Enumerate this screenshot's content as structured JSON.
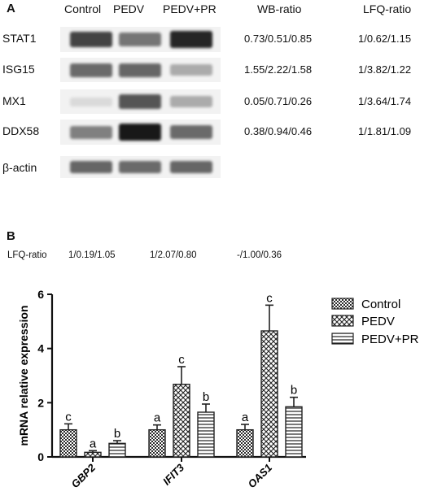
{
  "panel_a": {
    "letter": "A",
    "columns": [
      "Control",
      "PEDV",
      "PEDV+PR"
    ],
    "wb_header": "WB-ratio",
    "lfq_header": "LFQ-ratio",
    "rows": [
      {
        "label": "STAT1",
        "wb": "0.73/0.51/0.85",
        "lfq": "1/0.62/1.15",
        "intensity": [
          0.78,
          0.55,
          0.92
        ]
      },
      {
        "label": "ISG15",
        "wb": "1.55/2.22/1.58",
        "lfq": "1/3.82/1.22",
        "intensity": [
          0.6,
          0.62,
          0.3
        ]
      },
      {
        "label": "MX1",
        "wb": "0.05/0.71/0.26",
        "lfq": "1/3.64/1.74",
        "intensity": [
          0.08,
          0.7,
          0.3
        ]
      },
      {
        "label": "DDX58",
        "wb": "0.38/0.94/0.46",
        "lfq": "1/1.81/1.09",
        "intensity": [
          0.5,
          0.98,
          0.6
        ]
      },
      {
        "label": "β-actin",
        "wb": "",
        "lfq": "",
        "intensity": [
          0.62,
          0.6,
          0.62
        ]
      }
    ]
  },
  "panel_b": {
    "letter": "B",
    "lfq_label": "LFQ-ratio",
    "lfq_values": [
      "1/0.19/1.05",
      "1/2.07/0.80",
      "-/1.00/0.36"
    ]
  },
  "chart_data": {
    "type": "bar",
    "categories": [
      "GBP2",
      "IFIT3",
      "OAS1"
    ],
    "series": [
      {
        "name": "Control",
        "values": [
          1.0,
          1.0,
          1.0
        ],
        "errors": [
          0.22,
          0.18,
          0.2
        ],
        "letters": [
          "c",
          "a",
          "a"
        ]
      },
      {
        "name": "PEDV",
        "values": [
          0.17,
          2.68,
          4.65
        ],
        "errors": [
          0.06,
          0.65,
          0.95
        ],
        "letters": [
          "a",
          "c",
          "c"
        ]
      },
      {
        "name": "PEDV+PR",
        "values": [
          0.5,
          1.65,
          1.85
        ],
        "errors": [
          0.1,
          0.3,
          0.35
        ],
        "letters": [
          "b",
          "b",
          "b"
        ]
      }
    ],
    "ylabel": "mRNA relative expression",
    "ylim": [
      0,
      6
    ],
    "yticks": [
      0,
      2,
      4,
      6
    ],
    "legend": "top-right",
    "colors": {
      "bar_stroke": "#222222",
      "pattern": "#333333"
    }
  }
}
